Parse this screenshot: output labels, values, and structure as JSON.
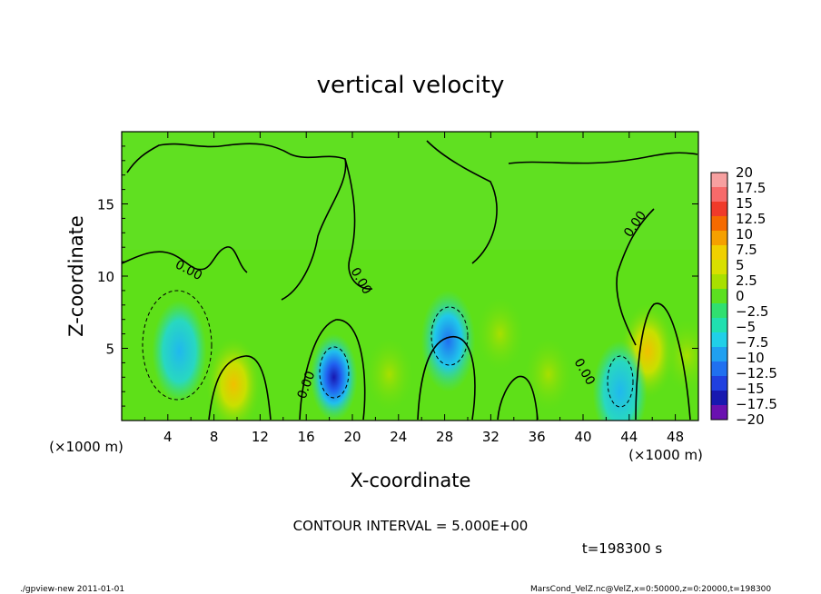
{
  "chart_data": {
    "type": "heatmap",
    "title": "vertical velocity",
    "xlabel": "X-coordinate",
    "ylabel": "Z-coordinate",
    "x_unit_label": "(×1000 m)",
    "x_unit_label_right": "(×1000 m)",
    "xlim": [
      0,
      50
    ],
    "ylim": [
      0,
      20
    ],
    "x_ticks": [
      4,
      8,
      12,
      16,
      20,
      24,
      28,
      32,
      36,
      40,
      44,
      48
    ],
    "x_tick_labels": [
      "4",
      "8",
      "12",
      "16",
      "20",
      "24",
      "28",
      "32",
      "36",
      "40",
      "44",
      "48"
    ],
    "y_ticks": [
      5,
      10,
      15
    ],
    "y_tick_labels": [
      "5",
      "10",
      "15"
    ],
    "zero_contour_labels": [
      "0.00",
      "0.00",
      "0.00",
      "0.00",
      "0.00"
    ],
    "contour_interval_label": "CONTOUR INTERVAL = 5.000E+00",
    "time_label": "t=198300 s",
    "colorbar": {
      "levels": [
        20,
        17.5,
        15,
        12.5,
        10,
        7.5,
        5,
        2.5,
        0,
        -2.5,
        -5,
        -7.5,
        -10,
        -12.5,
        -15,
        -17.5,
        -20
      ],
      "level_labels": [
        "20",
        "17.5",
        "15",
        "12.5",
        "10",
        "7.5",
        "5",
        "2.5",
        "0",
        "−2.5",
        "−5",
        "−7.5",
        "−10",
        "−12.5",
        "−15",
        "−17.5",
        "−20"
      ],
      "colors": [
        "#f7a0a0",
        "#f76a6a",
        "#f03a2a",
        "#f56a00",
        "#f5a000",
        "#f0d000",
        "#d8e000",
        "#a8e000",
        "#5ce020",
        "#30e070",
        "#20e0b0",
        "#20d0e8",
        "#20a0f0",
        "#2070f0",
        "#2040e0",
        "#1818b0",
        "#6a10b0"
      ]
    },
    "features": [
      {
        "kind": "updraft",
        "x": 9.7,
        "z": 2.5,
        "peak": 7.5
      },
      {
        "kind": "updraft",
        "x": 45.6,
        "z": 4.8,
        "peak": 7.5
      },
      {
        "kind": "updraft",
        "x": 23.2,
        "z": 3.2,
        "peak": 2.5
      },
      {
        "kind": "updraft",
        "x": 32.8,
        "z": 6.0,
        "peak": 2.5
      },
      {
        "kind": "updraft",
        "x": 37.0,
        "z": 3.2,
        "peak": 2.5
      },
      {
        "kind": "updraft",
        "x": 49.0,
        "z": 4.5,
        "peak": 2.5
      },
      {
        "kind": "downdraft",
        "x": 18.4,
        "z": 3.0,
        "peak": -12.5
      },
      {
        "kind": "downdraft",
        "x": 28.3,
        "z": 5.5,
        "peak": -7.5
      },
      {
        "kind": "downdraft",
        "x": 5.0,
        "z": 4.8,
        "peak": -5
      },
      {
        "kind": "downdraft",
        "x": 43.2,
        "z": 2.0,
        "peak": -5
      }
    ]
  },
  "footer": {
    "left": "./gpview-new   2011-01-01",
    "right": "MarsCond_VelZ.nc@VelZ,x=0:50000,z=0:20000,t=198300"
  }
}
